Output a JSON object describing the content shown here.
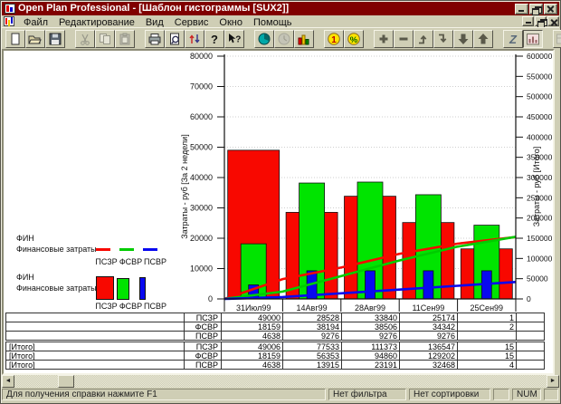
{
  "colors": {
    "titlebar": "#800000",
    "chrome": "#cfceb5",
    "bar_red": "#f80800",
    "bar_green": "#00e400",
    "bar_blue": "#0808f0"
  },
  "window": {
    "title": "Open Plan Professional - [Шаблон гистограммы [SUX2]]"
  },
  "menu": {
    "items": [
      {
        "name": "menu-file",
        "label": "Файл"
      },
      {
        "name": "menu-edit",
        "label": "Редактирование"
      },
      {
        "name": "menu-view",
        "label": "Вид"
      },
      {
        "name": "menu-service",
        "label": "Сервис"
      },
      {
        "name": "menu-window",
        "label": "Окно"
      },
      {
        "name": "menu-help",
        "label": "Помощь"
      }
    ]
  },
  "toolbar": {
    "groups": [
      {
        "buttons": [
          {
            "name": "new-file"
          },
          {
            "name": "open-file"
          },
          {
            "name": "save-file"
          }
        ]
      },
      {
        "buttons": [
          {
            "name": "cut",
            "disabled": true
          },
          {
            "name": "copy",
            "disabled": true
          },
          {
            "name": "paste",
            "disabled": true
          }
        ]
      },
      {
        "buttons": [
          {
            "name": "print"
          },
          {
            "name": "print-preview"
          },
          {
            "name": "sort-levels"
          },
          {
            "name": "help"
          },
          {
            "name": "context-help"
          }
        ]
      },
      {
        "buttons": [
          {
            "name": "pie-chart"
          },
          {
            "name": "clock",
            "disabled": true
          },
          {
            "name": "histogram"
          }
        ]
      },
      {
        "buttons": [
          {
            "name": "currency-1"
          },
          {
            "name": "percent"
          }
        ]
      },
      {
        "buttons": [
          {
            "name": "add"
          },
          {
            "name": "subtract"
          },
          {
            "name": "promote"
          },
          {
            "name": "demote"
          },
          {
            "name": "move-down"
          },
          {
            "name": "move-up"
          }
        ]
      },
      {
        "buttons": [
          {
            "name": "z-view"
          },
          {
            "name": "histogram-view",
            "pressed": true
          }
        ]
      },
      {
        "buttons": [
          {
            "name": "table-view",
            "disabled": true
          },
          {
            "name": "chart-view",
            "disabled": true
          }
        ]
      }
    ]
  },
  "chart_data": {
    "type": "bar",
    "categories": [
      "31Июл99",
      "14Авг99",
      "28Авг99",
      "11Сен99",
      "25Сен99"
    ],
    "series": [
      {
        "name": "ПСЗР",
        "type": "bar",
        "axis": "left",
        "color": "#f80800",
        "values": [
          49000,
          28528,
          33840,
          25174,
          16500
        ]
      },
      {
        "name": "ФСВР",
        "type": "bar",
        "axis": "left",
        "color": "#00e400",
        "values": [
          18159,
          38194,
          38506,
          34342,
          24300
        ]
      },
      {
        "name": "ПСВР",
        "type": "bar",
        "axis": "left",
        "color": "#0808f0",
        "values": [
          4638,
          9276,
          9276,
          9276,
          9276
        ]
      },
      {
        "name": "ПСЗР [Итого]",
        "type": "line",
        "axis": "right",
        "color": "#f80800",
        "values": [
          49006,
          77533,
          111373,
          136547,
          153000
        ]
      },
      {
        "name": "ФСВР [Итого]",
        "type": "line",
        "axis": "right",
        "color": "#00cc00",
        "values": [
          18159,
          56353,
          94860,
          129202,
          153500
        ]
      },
      {
        "name": "ПСВР [Итого]",
        "type": "line",
        "axis": "right",
        "color": "#0808f0",
        "values": [
          4638,
          13915,
          23191,
          32468,
          41744
        ]
      }
    ],
    "left_axis": {
      "label": "Затраты - руб [За 2 недели]",
      "min": 0,
      "max": 80000,
      "step": 10000
    },
    "right_axis": {
      "label": "Затраты - руб [Итого]",
      "min": 0,
      "max": 600000,
      "step": 50000
    },
    "grid": "dotted-horizontal",
    "legend_position": "left"
  },
  "legend_blocks": [
    {
      "title": "ФИН",
      "subtitle": "Финансовые затраты",
      "style": "line",
      "items": [
        "ПСЗР",
        "ФСВР",
        "ПСВР"
      ],
      "colors": [
        "#f80800",
        "#00cc00",
        "#0808f0"
      ]
    },
    {
      "title": "ФИН",
      "subtitle": "Финансовые затраты",
      "style": "bar",
      "items": [
        "ПСЗР",
        "ФСВР",
        "ПСВР"
      ],
      "colors": [
        "#f80800",
        "#00e400",
        "#0808f0"
      ]
    }
  ],
  "table": {
    "rows": [
      {
        "group": "",
        "code": "ПСЗР",
        "values": [
          "49000",
          "28528",
          "33840",
          "25174",
          "1"
        ]
      },
      {
        "group": "",
        "code": "ФСВР",
        "values": [
          "18159",
          "38194",
          "38506",
          "34342",
          "2"
        ]
      },
      {
        "group": "",
        "code": "ПСВР",
        "values": [
          "4638",
          "9276",
          "9276",
          "9276",
          ""
        ]
      },
      {
        "group": "[Итого]",
        "code": "ПСЗР",
        "values": [
          "49006",
          "77533",
          "111373",
          "136547",
          "15"
        ]
      },
      {
        "group": "[Итого]",
        "code": "ФСВР",
        "values": [
          "18159",
          "56353",
          "94860",
          "129202",
          "15"
        ]
      },
      {
        "group": "[Итого]",
        "code": "ПСВР",
        "values": [
          "4638",
          "13915",
          "23191",
          "32468",
          "4"
        ]
      }
    ]
  },
  "statusbar": {
    "message": "Для получения справки нажмите F1",
    "panels": [
      "Нет фильтра",
      "Нет сортировки",
      "",
      "NUM",
      ""
    ]
  }
}
